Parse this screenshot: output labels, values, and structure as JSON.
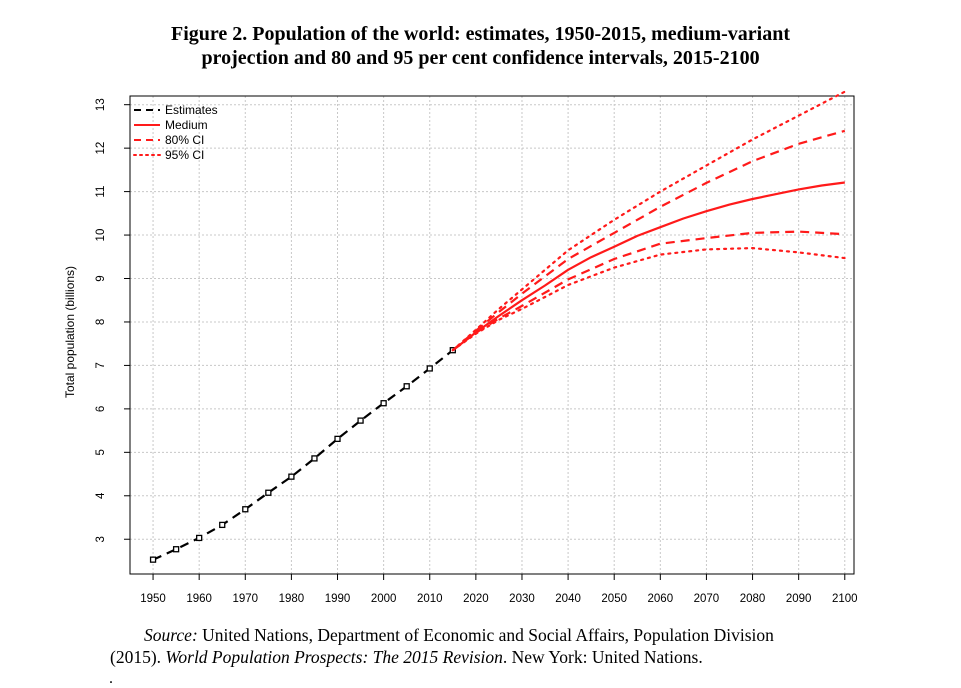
{
  "title": {
    "line1": "Figure 2.  Population of the world: estimates, 1950-2015, medium-variant",
    "line2": "projection and 80 and 95 per cent confidence intervals, 2015-2100"
  },
  "source": {
    "label": "Source:",
    "line1_rest": " United Nations, Department of Economic and Social Affairs, Population Division",
    "line2_a": "(2015). ",
    "line2_italic": "World Population Prospects: The 2015 Revision",
    "line2_b": ". New York: United Nations.",
    "trailing": "."
  },
  "chart_data": {
    "type": "line",
    "ylabel": "Total population (billions)",
    "xlabel": "",
    "xlim": [
      1945,
      2102
    ],
    "ylim": [
      2.2,
      13.2
    ],
    "grid": true,
    "legend_position": "top-left",
    "x_ticks": [
      1950,
      1960,
      1970,
      1980,
      1990,
      2000,
      2010,
      2020,
      2030,
      2040,
      2050,
      2060,
      2070,
      2080,
      2090,
      2100
    ],
    "y_ticks": [
      3,
      4,
      5,
      6,
      7,
      8,
      9,
      10,
      11,
      12,
      13
    ],
    "colors": {
      "estimates": "#000000",
      "projection": "#ff1a1a"
    },
    "series": [
      {
        "name": "Estimates",
        "style": "dashed-markers",
        "x": [
          1950,
          1955,
          1960,
          1965,
          1970,
          1975,
          1980,
          1985,
          1990,
          1995,
          2000,
          2005,
          2010,
          2015
        ],
        "y": [
          2.53,
          2.77,
          3.03,
          3.33,
          3.69,
          4.07,
          4.44,
          4.86,
          5.31,
          5.73,
          6.13,
          6.52,
          6.93,
          7.35
        ]
      },
      {
        "name": "Medium",
        "style": "solid",
        "x": [
          2015,
          2020,
          2025,
          2030,
          2035,
          2040,
          2045,
          2050,
          2055,
          2060,
          2065,
          2070,
          2075,
          2080,
          2085,
          2090,
          2095,
          2100
        ],
        "y": [
          7.35,
          7.76,
          8.14,
          8.5,
          8.84,
          9.2,
          9.49,
          9.73,
          9.98,
          10.18,
          10.38,
          10.55,
          10.7,
          10.83,
          10.94,
          11.05,
          11.14,
          11.21
        ]
      },
      {
        "name": "80% CI",
        "style": "dashed",
        "bound": "upper",
        "x": [
          2015,
          2020,
          2025,
          2030,
          2040,
          2050,
          2060,
          2070,
          2080,
          2090,
          2100
        ],
        "y": [
          7.35,
          7.8,
          8.23,
          8.65,
          9.45,
          10.05,
          10.65,
          11.2,
          11.7,
          12.1,
          12.4
        ]
      },
      {
        "name": "80% CI",
        "style": "dashed",
        "bound": "lower",
        "x": [
          2015,
          2020,
          2025,
          2030,
          2040,
          2050,
          2060,
          2070,
          2080,
          2090,
          2100
        ],
        "y": [
          7.35,
          7.75,
          8.08,
          8.37,
          8.98,
          9.45,
          9.8,
          9.93,
          10.05,
          10.08,
          10.02
        ]
      },
      {
        "name": "95% CI",
        "style": "dotted",
        "bound": "upper",
        "x": [
          2015,
          2020,
          2025,
          2030,
          2040,
          2050,
          2060,
          2070,
          2080,
          2090,
          2100
        ],
        "y": [
          7.35,
          7.82,
          8.3,
          8.75,
          9.65,
          10.35,
          11.0,
          11.6,
          12.2,
          12.75,
          13.3
        ]
      },
      {
        "name": "95% CI",
        "style": "dotted",
        "bound": "lower",
        "x": [
          2015,
          2020,
          2025,
          2030,
          2040,
          2050,
          2060,
          2070,
          2080,
          2090,
          2100
        ],
        "y": [
          7.35,
          7.73,
          8.05,
          8.3,
          8.85,
          9.25,
          9.55,
          9.67,
          9.7,
          9.6,
          9.47
        ]
      }
    ],
    "legend": [
      {
        "label": "Estimates",
        "style": "dashed",
        "color": "#000000"
      },
      {
        "label": "Medium",
        "style": "solid",
        "color": "#ff1a1a"
      },
      {
        "label": "80% CI",
        "style": "dashed",
        "color": "#ff1a1a"
      },
      {
        "label": "95% CI",
        "style": "dotted",
        "color": "#ff1a1a"
      }
    ]
  }
}
